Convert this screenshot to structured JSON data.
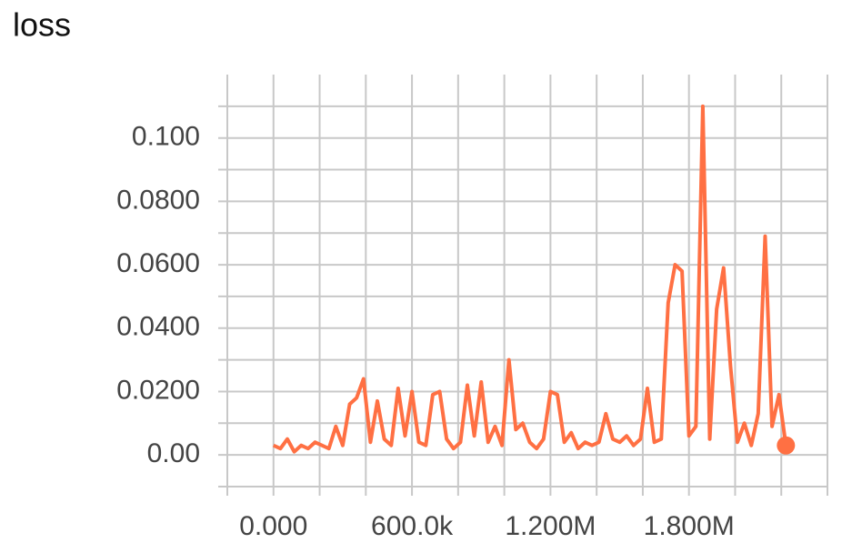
{
  "chart_data": {
    "type": "line",
    "title": "loss",
    "x": [
      0,
      30000,
      60000,
      90000,
      120000,
      150000,
      180000,
      210000,
      240000,
      270000,
      300000,
      330000,
      360000,
      390000,
      420000,
      450000,
      480000,
      510000,
      540000,
      570000,
      600000,
      630000,
      660000,
      690000,
      720000,
      750000,
      780000,
      810000,
      840000,
      870000,
      900000,
      930000,
      960000,
      990000,
      1020000,
      1050000,
      1080000,
      1110000,
      1140000,
      1170000,
      1200000,
      1230000,
      1260000,
      1290000,
      1320000,
      1350000,
      1380000,
      1410000,
      1440000,
      1470000,
      1500000,
      1530000,
      1560000,
      1590000,
      1620000,
      1650000,
      1680000,
      1710000,
      1740000,
      1770000,
      1800000,
      1830000,
      1860000,
      1890000,
      1920000,
      1950000,
      1980000,
      2010000,
      2040000,
      2070000,
      2100000,
      2130000,
      2160000,
      2190000,
      2220000
    ],
    "series": [
      {
        "color": "#ff7043",
        "values": [
          0.003,
          0.002,
          0.005,
          0.001,
          0.003,
          0.002,
          0.004,
          0.003,
          0.002,
          0.009,
          0.003,
          0.016,
          0.018,
          0.024,
          0.004,
          0.017,
          0.005,
          0.003,
          0.021,
          0.006,
          0.02,
          0.004,
          0.003,
          0.019,
          0.02,
          0.005,
          0.002,
          0.004,
          0.022,
          0.006,
          0.023,
          0.004,
          0.009,
          0.003,
          0.03,
          0.008,
          0.01,
          0.004,
          0.002,
          0.005,
          0.02,
          0.019,
          0.004,
          0.007,
          0.002,
          0.004,
          0.003,
          0.004,
          0.013,
          0.005,
          0.004,
          0.006,
          0.003,
          0.005,
          0.021,
          0.004,
          0.005,
          0.048,
          0.06,
          0.058,
          0.006,
          0.009,
          0.11,
          0.005,
          0.046,
          0.059,
          0.028,
          0.004,
          0.01,
          0.003,
          0.013,
          0.069,
          0.009,
          0.019,
          0.003
        ]
      }
    ],
    "xlim": [
      -200000,
      2400000
    ],
    "xticks": [
      {
        "value": 0,
        "label": "0.000"
      },
      {
        "value": 600000,
        "label": "600.0k"
      },
      {
        "value": 1200000,
        "label": "1.200M"
      },
      {
        "value": 1800000,
        "label": "1.800M"
      }
    ],
    "x_minor_ticks": [
      -200000,
      0,
      200000,
      400000,
      600000,
      800000,
      1000000,
      1200000,
      1400000,
      1600000,
      1800000,
      2000000,
      2200000,
      2400000
    ],
    "ylim": [
      -0.01,
      0.12
    ],
    "yticks": [
      {
        "value": 0,
        "label": "0.00"
      },
      {
        "value": 0.02,
        "label": "0.0200"
      },
      {
        "value": 0.04,
        "label": "0.0400"
      },
      {
        "value": 0.06,
        "label": "0.0600"
      },
      {
        "value": 0.08,
        "label": "0.0800"
      },
      {
        "value": 0.1,
        "label": "0.100"
      }
    ],
    "y_minor_ticks": [
      -0.01,
      0,
      0.01,
      0.02,
      0.03,
      0.04,
      0.05,
      0.06,
      0.07,
      0.08,
      0.09,
      0.1,
      0.11
    ],
    "grid": true
  }
}
